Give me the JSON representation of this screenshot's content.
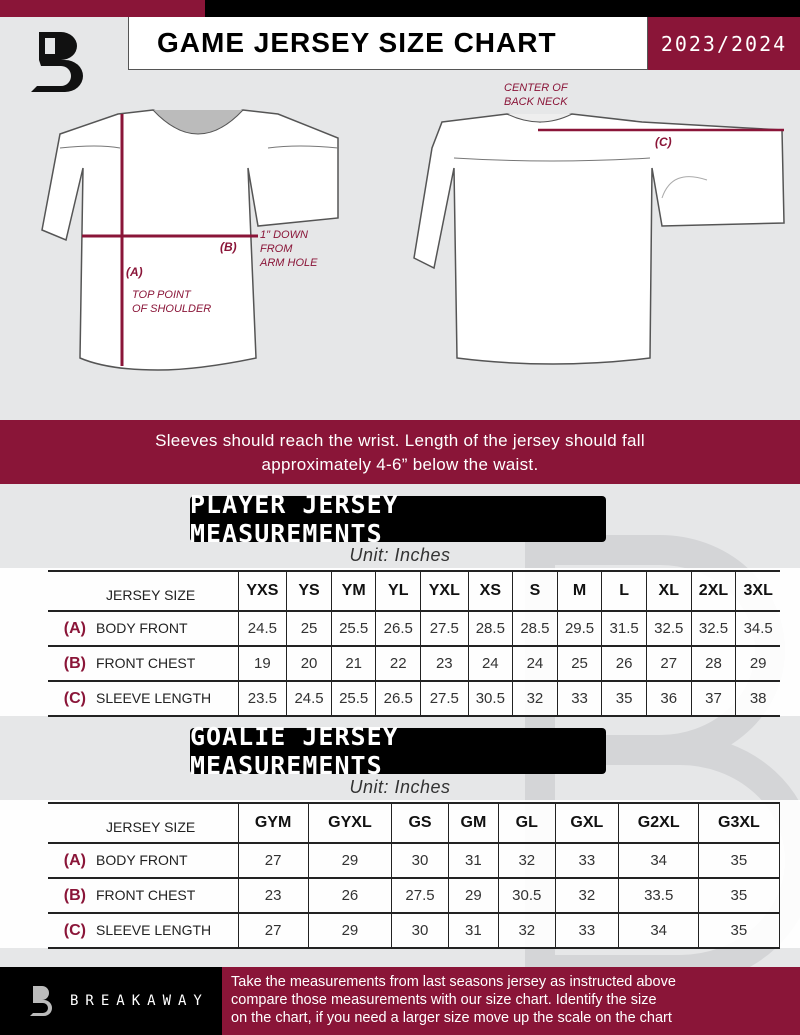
{
  "header": {
    "title": "GAME JERSEY SIZE CHART",
    "season": "2023/2024",
    "brand": "B"
  },
  "diagram": {
    "labels": {
      "a": "(A)",
      "b": "(B)",
      "c": "(C)"
    },
    "notes": {
      "shoulder": [
        "TOP POINT",
        "OF SHOULDER"
      ],
      "armhole": [
        "1\" DOWN",
        "FROM",
        "ARM HOLE"
      ],
      "neck": [
        "CENTER OF",
        "BACK NECK"
      ]
    }
  },
  "band_text": [
    "Sleeves should reach the wrist. Length of the jersey should fall",
    "approximately 4-6” below the waist."
  ],
  "player": {
    "title": "PLAYER JERSEY MEASUREMENTS",
    "unit": "Unit: Inches",
    "size_header": "JERSEY SIZE",
    "sizes": [
      "YXS",
      "YS",
      "YM",
      "YL",
      "YXL",
      "XS",
      "S",
      "M",
      "L",
      "XL",
      "2XL",
      "3XL"
    ],
    "rows": [
      {
        "letter": "(A)",
        "label": "BODY FRONT",
        "values": [
          "24.5",
          "25",
          "25.5",
          "26.5",
          "27.5",
          "28.5",
          "28.5",
          "29.5",
          "31.5",
          "32.5",
          "32.5",
          "34.5"
        ]
      },
      {
        "letter": "(B)",
        "label": "FRONT CHEST",
        "values": [
          "19",
          "20",
          "21",
          "22",
          "23",
          "24",
          "24",
          "25",
          "26",
          "27",
          "28",
          "29"
        ]
      },
      {
        "letter": "(C)",
        "label": "SLEEVE LENGTH",
        "values": [
          "23.5",
          "24.5",
          "25.5",
          "26.5",
          "27.5",
          "30.5",
          "32",
          "33",
          "35",
          "36",
          "37",
          "38"
        ]
      }
    ]
  },
  "goalie": {
    "title": "GOALIE JERSEY MEASUREMENTS",
    "unit": "Unit: Inches",
    "size_header": "JERSEY SIZE",
    "sizes": [
      "GYM",
      "GYXL",
      "GS",
      "GM",
      "GL",
      "GXL",
      "G2XL",
      "G3XL",
      ""
    ],
    "rows": [
      {
        "letter": "(A)",
        "label": "BODY FRONT",
        "values": [
          "27",
          "29",
          "30",
          "31",
          "32",
          "33",
          "34",
          "35",
          ""
        ]
      },
      {
        "letter": "(B)",
        "label": "FRONT CHEST",
        "values": [
          "23",
          "26",
          "27.5",
          "29",
          "30.5",
          "32",
          "33.5",
          "35",
          ""
        ]
      },
      {
        "letter": "(C)",
        "label": "SLEEVE LENGTH",
        "values": [
          "27",
          "29",
          "30",
          "31",
          "32",
          "33",
          "34",
          "35",
          ""
        ]
      }
    ]
  },
  "footer": {
    "brand": "BREAKAWAY",
    "text": [
      "Take the measurements from last seasons jersey as instructed above",
      "compare those measurements  with our size chart. Identify the size",
      "on the chart, if you need a larger size move up the scale on the chart"
    ]
  },
  "colors": {
    "accent": "#8a1538",
    "dark": "#000000",
    "background": "#e6e7e8"
  }
}
